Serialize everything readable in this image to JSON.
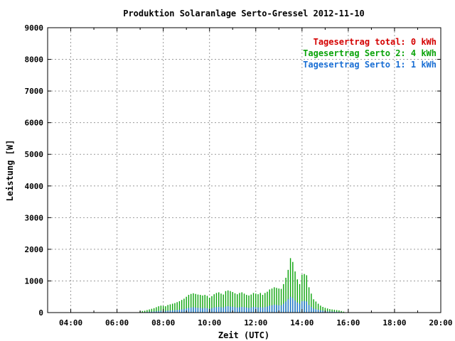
{
  "chart_data": {
    "type": "bar",
    "title": "Produktion Solaranlage Serto-Gressel 2012-11-10",
    "xlabel": "Zeit (UTC)",
    "ylabel": "Leistung [W]",
    "xlim": [
      3.0,
      20.0
    ],
    "ylim": [
      0,
      9000
    ],
    "grid": true,
    "legend_position": "top-right",
    "x_ticks": [
      {
        "value": 4,
        "label": "04:00"
      },
      {
        "value": 6,
        "label": "06:00"
      },
      {
        "value": 8,
        "label": "08:00"
      },
      {
        "value": 10,
        "label": "10:00"
      },
      {
        "value": 12,
        "label": "12:00"
      },
      {
        "value": 14,
        "label": "14:00"
      },
      {
        "value": 16,
        "label": "16:00"
      },
      {
        "value": 18,
        "label": "18:00"
      },
      {
        "value": 20,
        "label": "20:00"
      }
    ],
    "y_ticks": [
      {
        "value": 0,
        "label": "0"
      },
      {
        "value": 1000,
        "label": "1000"
      },
      {
        "value": 2000,
        "label": "2000"
      },
      {
        "value": 3000,
        "label": "3000"
      },
      {
        "value": 4000,
        "label": "4000"
      },
      {
        "value": 5000,
        "label": "5000"
      },
      {
        "value": 6000,
        "label": "6000"
      },
      {
        "value": 7000,
        "label": "7000"
      },
      {
        "value": 8000,
        "label": "8000"
      },
      {
        "value": 9000,
        "label": "9000"
      }
    ],
    "legend": [
      {
        "text": "Tagesertrag total: 0 kWh",
        "color": "#d40000"
      },
      {
        "text": "Tagesertrag Serto 2: 4 kWh",
        "color": "#0aa30a"
      },
      {
        "text": "Tagesertrag Serto 1: 1 kWh",
        "color": "#1a6fd4"
      }
    ],
    "series": [
      {
        "color": "#0aa30a",
        "x": [
          7.0,
          7.1,
          7.2,
          7.3,
          7.4,
          7.5,
          7.6,
          7.7,
          7.8,
          7.9,
          8.0,
          8.1,
          8.2,
          8.3,
          8.4,
          8.5,
          8.6,
          8.7,
          8.8,
          8.9,
          9.0,
          9.1,
          9.2,
          9.3,
          9.4,
          9.5,
          9.6,
          9.7,
          9.8,
          9.9,
          10.0,
          10.1,
          10.2,
          10.3,
          10.4,
          10.5,
          10.6,
          10.7,
          10.8,
          10.9,
          11.0,
          11.1,
          11.2,
          11.3,
          11.4,
          11.5,
          11.6,
          11.7,
          11.8,
          11.9,
          12.0,
          12.1,
          12.2,
          12.3,
          12.4,
          12.5,
          12.6,
          12.7,
          12.8,
          12.9,
          13.0,
          13.1,
          13.2,
          13.3,
          13.4,
          13.5,
          13.6,
          13.7,
          13.8,
          13.9,
          14.0,
          14.1,
          14.2,
          14.3,
          14.4,
          14.5,
          14.6,
          14.7,
          14.8,
          14.9,
          15.0,
          15.1,
          15.2,
          15.3,
          15.4,
          15.5,
          15.6,
          15.7,
          15.8
        ],
        "values": [
          40,
          50,
          60,
          80,
          100,
          120,
          140,
          170,
          200,
          220,
          210,
          200,
          240,
          260,
          280,
          300,
          330,
          360,
          400,
          440,
          500,
          560,
          590,
          610,
          590,
          570,
          560,
          540,
          560,
          530,
          470,
          520,
          580,
          620,
          640,
          600,
          570,
          680,
          700,
          680,
          650,
          610,
          580,
          620,
          640,
          600,
          560,
          540,
          570,
          620,
          600,
          580,
          620,
          560,
          620,
          660,
          730,
          760,
          800,
          780,
          760,
          750,
          900,
          1100,
          1350,
          1720,
          1600,
          1300,
          1050,
          900,
          1200,
          1220,
          1180,
          800,
          600,
          420,
          350,
          280,
          220,
          180,
          150,
          130,
          110,
          100,
          90,
          80,
          70,
          50,
          30
        ]
      },
      {
        "color": "#1a6fd4",
        "x": [
          7.0,
          7.1,
          7.2,
          7.3,
          7.4,
          7.5,
          7.6,
          7.7,
          7.8,
          7.9,
          8.0,
          8.1,
          8.2,
          8.3,
          8.4,
          8.5,
          8.6,
          8.7,
          8.8,
          8.9,
          9.0,
          9.1,
          9.2,
          9.3,
          9.4,
          9.5,
          9.6,
          9.7,
          9.8,
          9.9,
          10.0,
          10.1,
          10.2,
          10.3,
          10.4,
          10.5,
          10.6,
          10.7,
          10.8,
          10.9,
          11.0,
          11.1,
          11.2,
          11.3,
          11.4,
          11.5,
          11.6,
          11.7,
          11.8,
          11.9,
          12.0,
          12.1,
          12.2,
          12.3,
          12.4,
          12.5,
          12.6,
          12.7,
          12.8,
          12.9,
          13.0,
          13.1,
          13.2,
          13.3,
          13.4,
          13.5,
          13.6,
          13.7,
          13.8,
          13.9,
          14.0,
          14.1,
          14.2,
          14.3,
          14.4,
          14.5,
          14.6,
          14.7,
          14.8,
          14.9,
          15.0,
          15.1,
          15.2,
          15.3,
          15.4,
          15.5,
          15.6,
          15.7,
          15.8
        ],
        "values": [
          10,
          10,
          15,
          20,
          25,
          30,
          35,
          40,
          50,
          55,
          55,
          50,
          60,
          65,
          70,
          75,
          80,
          90,
          100,
          110,
          130,
          150,
          160,
          170,
          160,
          150,
          150,
          140,
          150,
          140,
          120,
          140,
          160,
          170,
          180,
          170,
          160,
          190,
          200,
          190,
          180,
          170,
          160,
          170,
          180,
          170,
          160,
          150,
          160,
          180,
          170,
          160,
          170,
          160,
          170,
          190,
          220,
          230,
          250,
          240,
          230,
          230,
          280,
          350,
          420,
          500,
          460,
          380,
          320,
          280,
          360,
          370,
          350,
          240,
          180,
          130,
          110,
          90,
          70,
          60,
          50,
          40,
          35,
          30,
          28,
          25,
          20,
          15,
          10
        ]
      }
    ]
  }
}
